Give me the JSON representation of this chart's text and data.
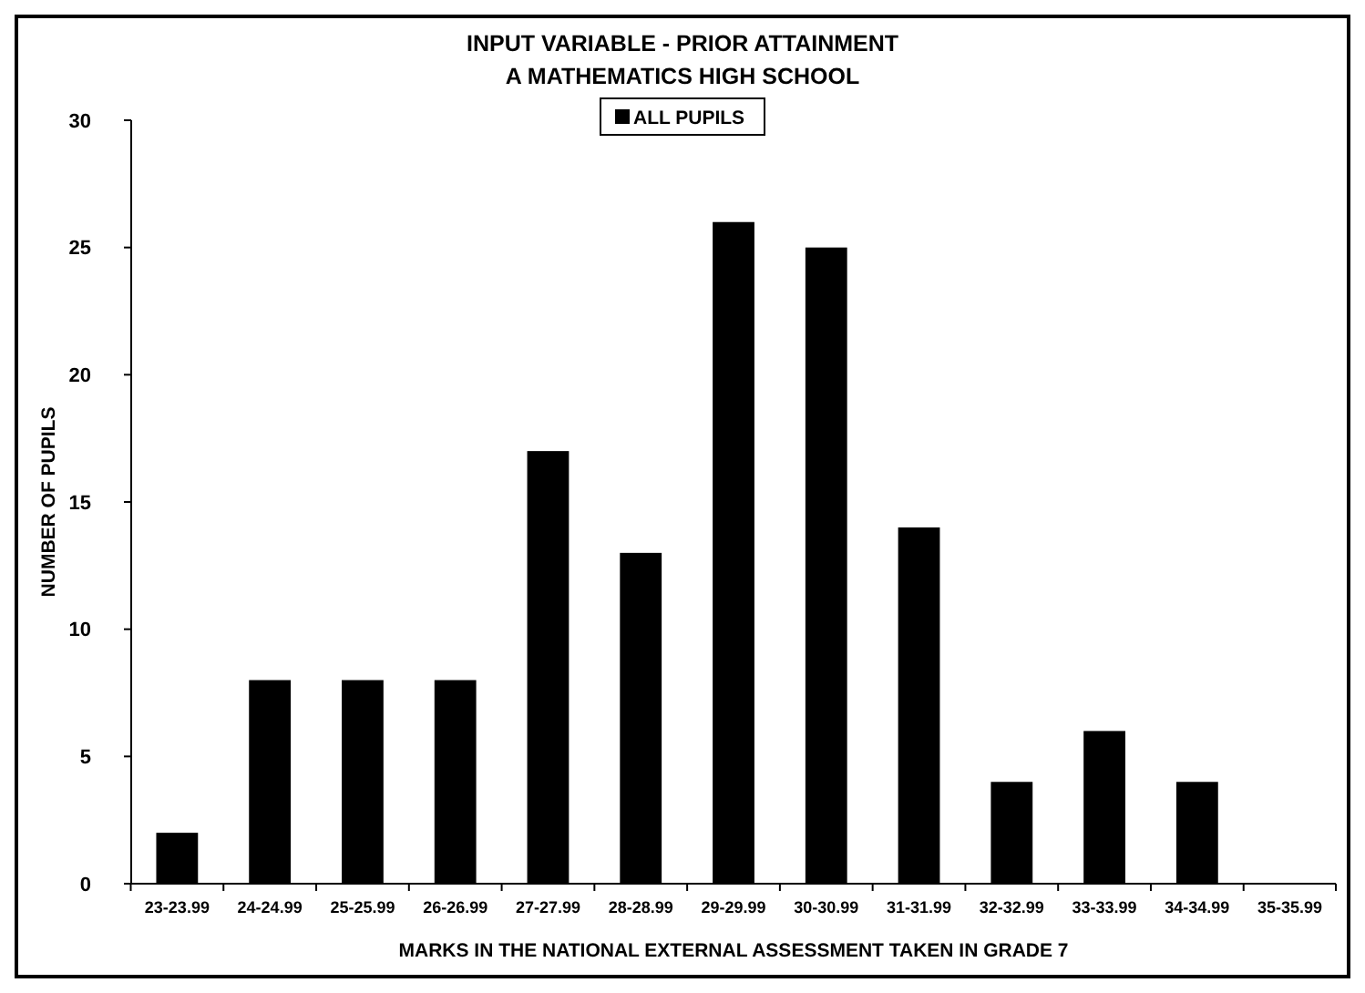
{
  "chart_data": {
    "type": "bar",
    "title": "INPUT VARIABLE - PRIOR ATTAINMENT",
    "subtitle": "A MATHEMATICS HIGH SCHOOL",
    "xlabel": "MARKS IN THE NATIONAL EXTERNAL ASSESSMENT TAKEN IN GRADE 7",
    "ylabel": "NUMBER OF PUPILS",
    "categories": [
      "23-23.99",
      "24-24.99",
      "25-25.99",
      "26-26.99",
      "27-27.99",
      "28-28.99",
      "29-29.99",
      "30-30.99",
      "31-31.99",
      "32-32.99",
      "33-33.99",
      "34-34.99",
      "35-35.99"
    ],
    "series": [
      {
        "name": "ALL PUPILS",
        "color": "#000000",
        "values": [
          2,
          8,
          8,
          8,
          17,
          13,
          26,
          25,
          14,
          4,
          6,
          4,
          0
        ]
      }
    ],
    "ylim": [
      0,
      30
    ],
    "yticks": [
      0,
      5,
      10,
      15,
      20,
      25,
      30
    ],
    "legend": "top",
    "grid": false
  }
}
